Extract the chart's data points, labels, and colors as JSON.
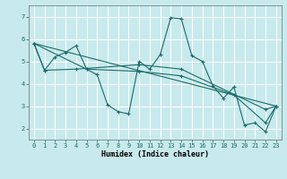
{
  "title": "",
  "xlabel": "Humidex (Indice chaleur)",
  "bg_color": "#c8eaec",
  "grid_color": "#ffffff",
  "line_color": "#1a6b6b",
  "xlim": [
    -0.5,
    23.5
  ],
  "ylim": [
    1.5,
    7.5
  ],
  "xticks": [
    0,
    1,
    2,
    3,
    4,
    5,
    6,
    7,
    8,
    9,
    10,
    11,
    12,
    13,
    14,
    15,
    16,
    17,
    18,
    19,
    20,
    21,
    22,
    23
  ],
  "yticks": [
    2,
    3,
    4,
    5,
    6,
    7
  ],
  "line1_x": [
    0,
    1,
    2,
    3,
    4,
    5,
    6,
    7,
    8,
    9,
    10,
    11,
    12,
    13,
    14,
    15,
    16,
    17,
    18,
    19,
    20,
    21,
    22,
    23
  ],
  "line1_y": [
    5.8,
    4.6,
    5.2,
    5.4,
    5.7,
    4.65,
    4.4,
    3.05,
    2.75,
    2.65,
    5.0,
    4.65,
    5.3,
    6.95,
    6.9,
    5.25,
    5.0,
    3.9,
    3.35,
    3.85,
    2.15,
    2.25,
    1.85,
    3.0
  ],
  "line2_x": [
    0,
    1,
    4,
    10,
    14,
    22,
    23
  ],
  "line2_y": [
    5.8,
    4.6,
    4.65,
    4.85,
    4.65,
    2.85,
    3.0
  ],
  "line3_x": [
    0,
    5,
    10,
    14,
    19,
    22,
    23
  ],
  "line3_y": [
    5.8,
    4.65,
    4.55,
    4.35,
    3.5,
    2.25,
    3.0
  ],
  "line4_x": [
    0,
    23
  ],
  "line4_y": [
    5.8,
    3.0
  ],
  "tick_fontsize": 5.0,
  "xlabel_fontsize": 6.0,
  "marker_size": 3.0,
  "line_width": 0.8
}
